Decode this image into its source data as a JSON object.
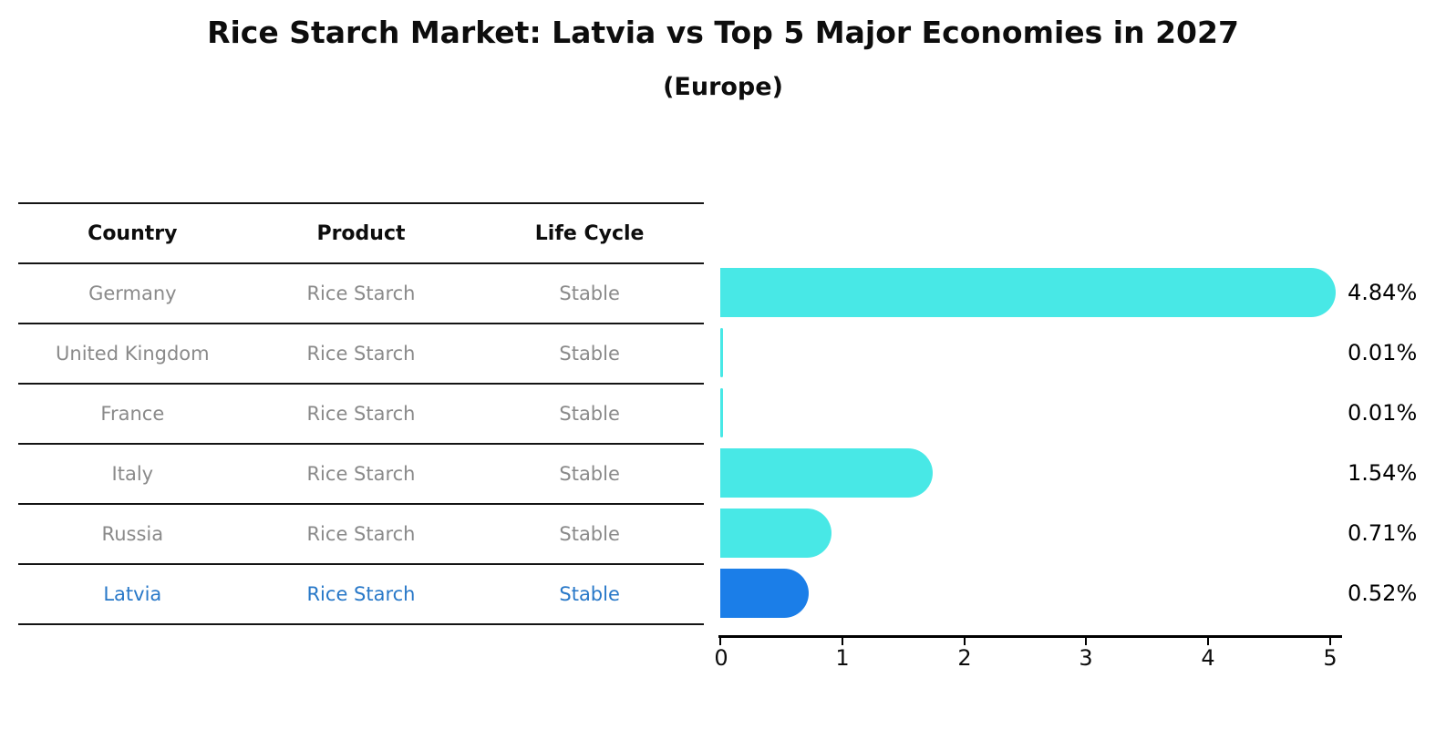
{
  "header": {
    "title": "Rice Starch Market: Latvia vs Top 5 Major Economies in 2027",
    "subtitle": "(Europe)"
  },
  "table": {
    "columns": [
      "Country",
      "Product",
      "Life Cycle"
    ],
    "rows": [
      {
        "country": "Germany",
        "product": "Rice Starch",
        "life_cycle": "Stable",
        "highlight": false
      },
      {
        "country": "United Kingdom",
        "product": "Rice Starch",
        "life_cycle": "Stable",
        "highlight": false
      },
      {
        "country": "France",
        "product": "Rice Starch",
        "life_cycle": "Stable",
        "highlight": false
      },
      {
        "country": "Italy",
        "product": "Rice Starch",
        "life_cycle": "Stable",
        "highlight": false
      },
      {
        "country": "Russia",
        "product": "Rice Starch",
        "life_cycle": "Stable",
        "highlight": false
      },
      {
        "country": "Latvia",
        "product": "Rice Starch",
        "life_cycle": "Stable",
        "highlight": true
      }
    ]
  },
  "chart_data": {
    "type": "bar",
    "orientation": "horizontal",
    "title": "Rice Starch Market: Latvia vs Top 5 Major Economies in 2027",
    "subtitle": "(Europe)",
    "categories": [
      "Germany",
      "United Kingdom",
      "France",
      "Italy",
      "Russia",
      "Latvia"
    ],
    "values": [
      4.84,
      0.01,
      0.01,
      1.54,
      0.71,
      0.52
    ],
    "value_labels": [
      "4.84%",
      "0.01%",
      "0.01%",
      "1.54%",
      "0.71%",
      "0.52%"
    ],
    "xlim": [
      0,
      5
    ],
    "x_ticks": [
      "0",
      "1",
      "2",
      "3",
      "4",
      "5"
    ],
    "highlight_index": 5,
    "grid": false,
    "legend": "none"
  },
  "colors": {
    "bar": "#48e8e6",
    "highlight_bar": "#1b7ee8",
    "highlight_bar_border": "#1b7ee8",
    "highlight_text": "#2878c8",
    "table_text": "#8a8a8a",
    "line": "#141414",
    "axis": "#000000"
  }
}
